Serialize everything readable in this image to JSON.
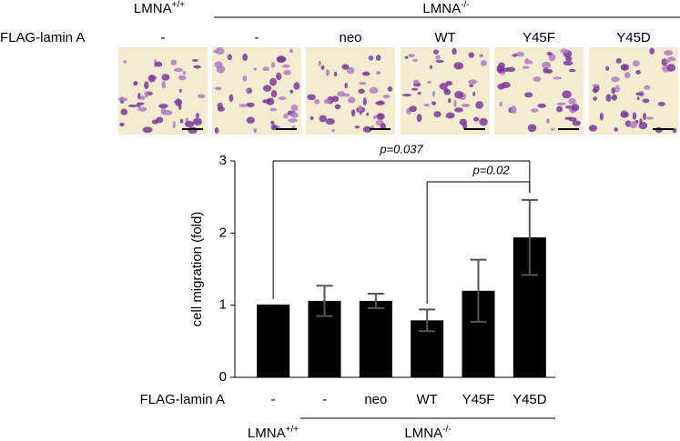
{
  "image_panel": {
    "genotype_labels": [
      {
        "name": "LMNA",
        "sup": "+/+"
      },
      {
        "name": "LMNA",
        "sup": "-/-"
      }
    ],
    "row_label": "FLAG-lamin A",
    "conditions": [
      "-",
      "-",
      "neo",
      "WT",
      "Y45F",
      "Y45D"
    ]
  },
  "chart_data": {
    "type": "bar",
    "ylabel": "cell migration (fold)",
    "categories_label": "FLAG-lamin A",
    "categories": [
      "-",
      "-",
      "neo",
      "WT",
      "Y45F",
      "Y45D"
    ],
    "values": [
      1.01,
      1.06,
      1.06,
      0.79,
      1.2,
      1.94
    ],
    "errors": [
      null,
      0.21,
      0.1,
      0.15,
      0.43,
      0.52
    ],
    "color": "#000000",
    "error_color": "#555555",
    "ylim": [
      0,
      3
    ],
    "yticks": [
      0,
      1,
      2,
      3
    ],
    "group_labels": [
      {
        "name": "LMNA",
        "sup": "+/+"
      },
      {
        "name": "LMNA",
        "sup": "-/-"
      }
    ],
    "annotations": [
      "p=0.037",
      "p=0.02"
    ]
  }
}
